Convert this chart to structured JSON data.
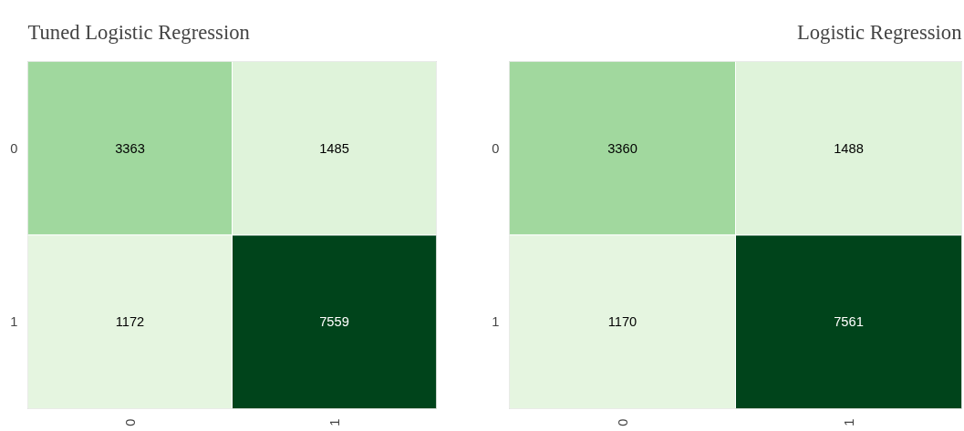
{
  "chart_data": [
    {
      "type": "heatmap",
      "title": "Tuned Logistic Regression",
      "categories": [
        "0",
        "1"
      ],
      "y_categories": [
        "0",
        "1"
      ],
      "cells": [
        [
          3363,
          1485
        ],
        [
          1172,
          7559
        ]
      ],
      "data_labels": true
    },
    {
      "type": "heatmap",
      "title": "Logistic Regression",
      "categories": [
        "0",
        "1"
      ],
      "y_categories": [
        "0",
        "1"
      ],
      "cells": [
        [
          3360,
          1488
        ],
        [
          1170,
          7561
        ]
      ],
      "data_labels": true
    }
  ]
}
